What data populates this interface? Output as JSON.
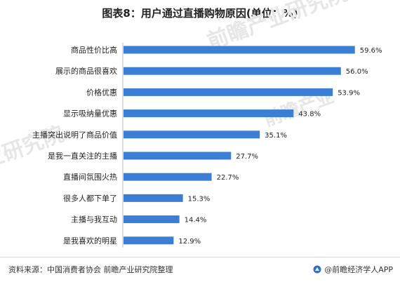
{
  "title": "图表8：用户通过直播购物原因(单位：%)",
  "chart_data": {
    "type": "bar",
    "orientation": "horizontal",
    "title": "图表8：用户通过直播购物原因(单位：%)",
    "categories": [
      "商品性价比高",
      "展示的商品很喜欢",
      "价格优惠",
      "显示吸纳量优惠",
      "主播突出说明了商品价值",
      "是我一直关注的主播",
      "直播间氛围火热",
      "很多人都下单了",
      "主播与我互动",
      "是我喜欢的明星"
    ],
    "values": [
      59.6,
      56.0,
      53.9,
      43.8,
      35.1,
      27.7,
      22.7,
      15.3,
      14.4,
      12.9
    ],
    "value_labels": [
      "59.6%",
      "56.0%",
      "53.9%",
      "43.8%",
      "35.1%",
      "27.7%",
      "22.7%",
      "15.3%",
      "14.4%",
      "12.9%"
    ],
    "xlim": [
      0,
      62
    ],
    "grid": false,
    "bar_color": "#3a7fd5"
  },
  "footer": {
    "source": "资料来源：中国消费者协会 前瞻产业研究院整理",
    "brand": "@前瞻经济学人APP",
    "brand_icon": "qianzhan-logo-icon"
  }
}
